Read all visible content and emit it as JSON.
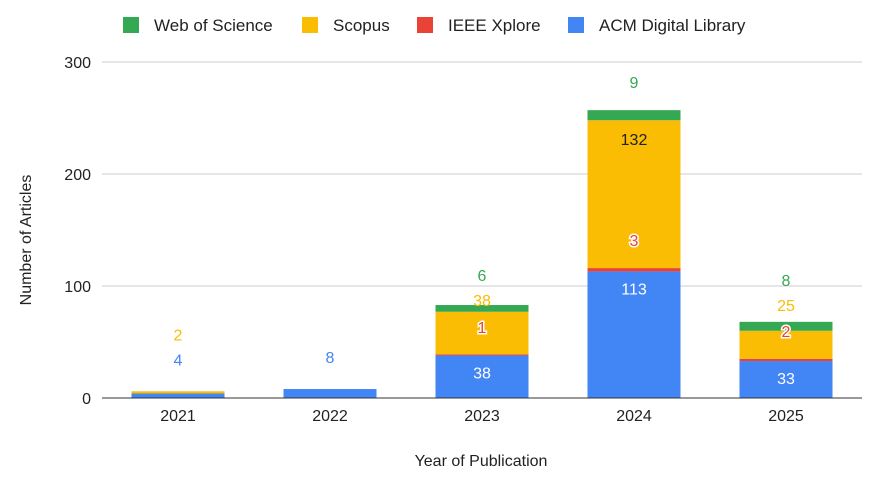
{
  "chart_data": {
    "type": "bar",
    "stacked": true,
    "categories": [
      "2021",
      "2022",
      "2023",
      "2024",
      "2025"
    ],
    "series": [
      {
        "name": "ACM Digital Library",
        "color": "#4285F4",
        "values": [
          4,
          8,
          38,
          113,
          33
        ],
        "labels": [
          "4",
          "8",
          "38",
          "113",
          "33"
        ]
      },
      {
        "name": "IEEE Xplore",
        "color": "#EA4335",
        "values": [
          0,
          0,
          1,
          3,
          2
        ],
        "labels": [
          "",
          "",
          "1",
          "3",
          "2"
        ]
      },
      {
        "name": "Scopus",
        "color": "#FBBC04",
        "values": [
          2,
          0,
          38,
          132,
          25
        ],
        "labels": [
          "2",
          "",
          "38",
          "132",
          "25"
        ]
      },
      {
        "name": "Web of Science",
        "color": "#34A853",
        "values": [
          0,
          0,
          6,
          9,
          8
        ],
        "labels": [
          "",
          "",
          "6",
          "9",
          "8"
        ]
      }
    ],
    "legend_order": [
      "Web of Science",
      "Scopus",
      "IEEE Xplore",
      "ACM Digital Library"
    ],
    "legend_position": "top",
    "title": "",
    "xlabel": "Year of Publication",
    "ylabel": "Number of Articles",
    "ylim": [
      0,
      300
    ],
    "yticks": [
      0,
      100,
      200,
      300
    ],
    "grid": true
  }
}
